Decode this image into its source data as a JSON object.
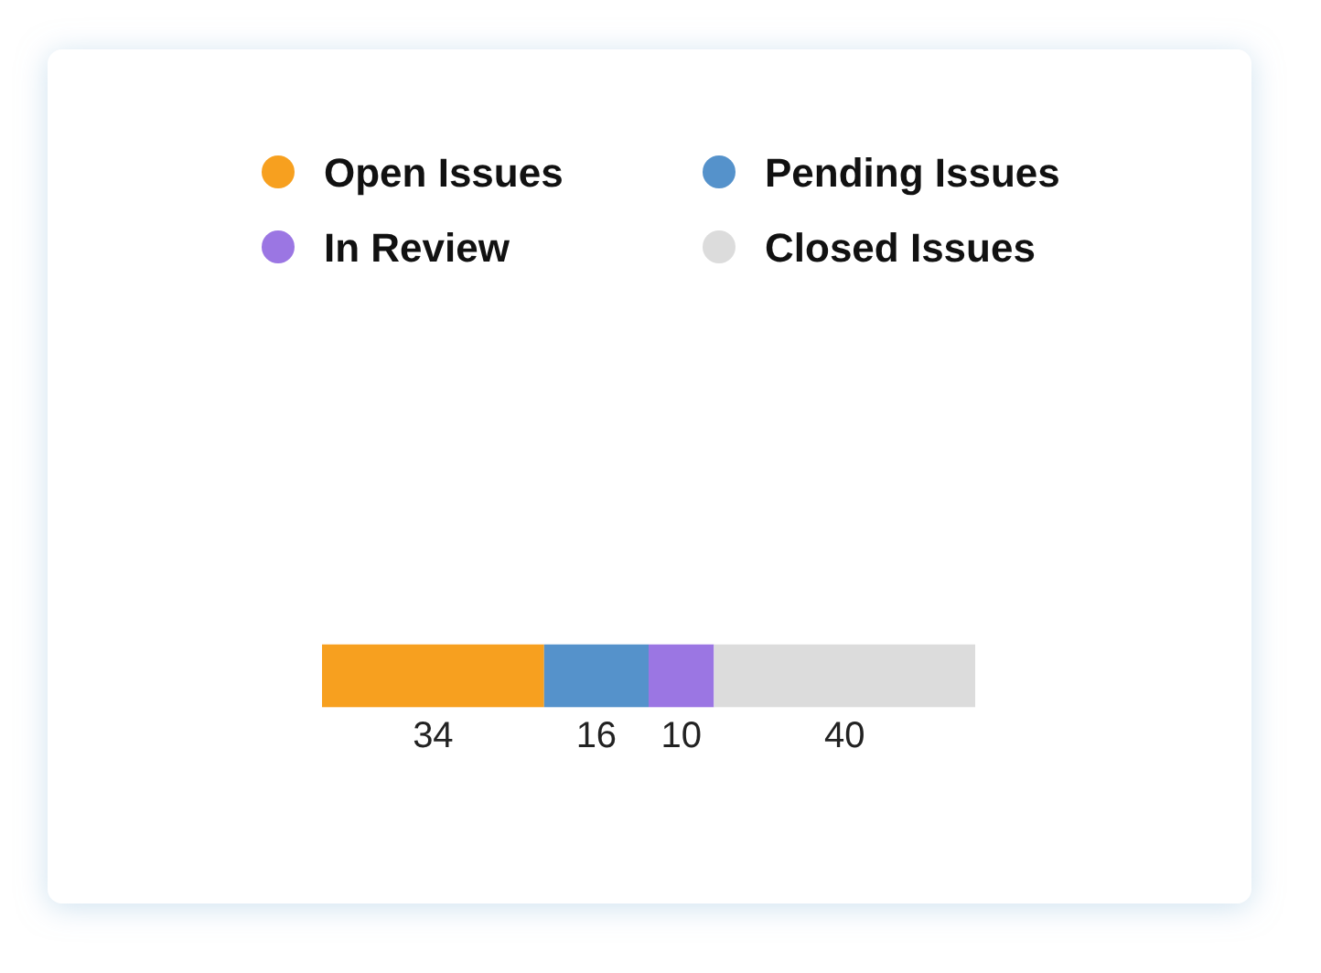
{
  "chart_data": {
    "type": "bar",
    "orientation": "horizontal",
    "stacked": true,
    "categories": [
      null
    ],
    "data_labels": true,
    "legend": "top",
    "series": [
      {
        "name": "Open Issues",
        "color": "#f7a01f",
        "values": [
          34
        ]
      },
      {
        "name": "Pending Issues",
        "color": "#5592cb",
        "values": [
          16
        ]
      },
      {
        "name": "In Review",
        "color": "#9b76e3",
        "values": [
          10
        ]
      },
      {
        "name": "Closed Issues",
        "color": "#dcdcdc",
        "values": [
          40
        ]
      }
    ]
  }
}
